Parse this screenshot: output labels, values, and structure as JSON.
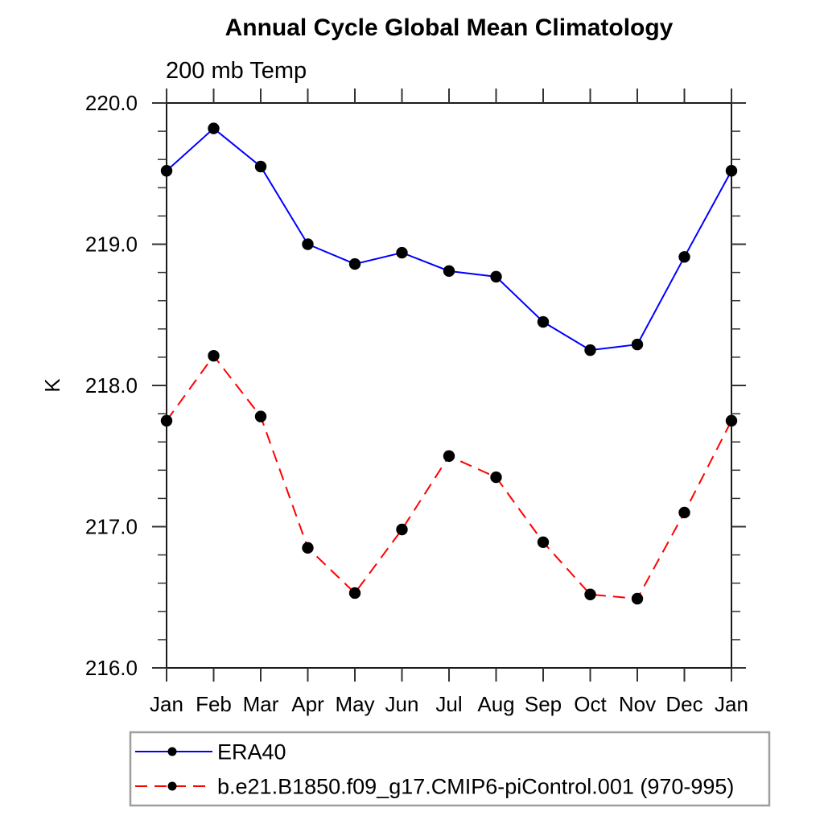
{
  "title": "Annual Cycle Global Mean Climatology",
  "subtitle": "200 mb Temp",
  "ylabel": "K",
  "colors": {
    "background": "#ffffff",
    "axis": "#1a1a1a",
    "tick": "#333333",
    "marker": "#000000",
    "era40_line": "#0000ff",
    "cmip6_line": "#ff0000",
    "legend_border": "#9e9e9e",
    "text": "#000000"
  },
  "chart_data": {
    "type": "line",
    "title": "Annual Cycle Global Mean Climatology",
    "subtitle": "200 mb Temp",
    "xlabel": "",
    "ylabel": "K",
    "categories": [
      "Jan",
      "Feb",
      "Mar",
      "Apr",
      "May",
      "Jun",
      "Jul",
      "Aug",
      "Sep",
      "Oct",
      "Nov",
      "Dec",
      "Jan"
    ],
    "ylim": [
      216.0,
      220.0
    ],
    "ytick_labels": [
      "216.0",
      "217.0",
      "218.0",
      "219.0",
      "220.0"
    ],
    "ytick_values": [
      216.0,
      217.0,
      218.0,
      219.0,
      220.0
    ],
    "y_minor_step": 0.2,
    "grid": false,
    "legend_position": "bottom-left",
    "series": [
      {
        "name": "ERA40",
        "color": "#0000ff",
        "line_style": "solid",
        "marker": "filled-circle",
        "marker_color": "#000000",
        "values": [
          219.52,
          219.82,
          219.55,
          219.0,
          218.86,
          218.94,
          218.81,
          218.77,
          218.45,
          218.25,
          218.29,
          218.91,
          219.52
        ]
      },
      {
        "name": "b.e21.B1850.f09_g17.CMIP6-piControl.001 (970-995)",
        "color": "#ff0000",
        "line_style": "dashed",
        "marker": "filled-circle",
        "marker_color": "#000000",
        "values": [
          217.75,
          218.21,
          217.78,
          216.85,
          216.53,
          216.98,
          217.5,
          217.35,
          216.89,
          216.52,
          216.49,
          217.1,
          217.75
        ]
      }
    ]
  }
}
